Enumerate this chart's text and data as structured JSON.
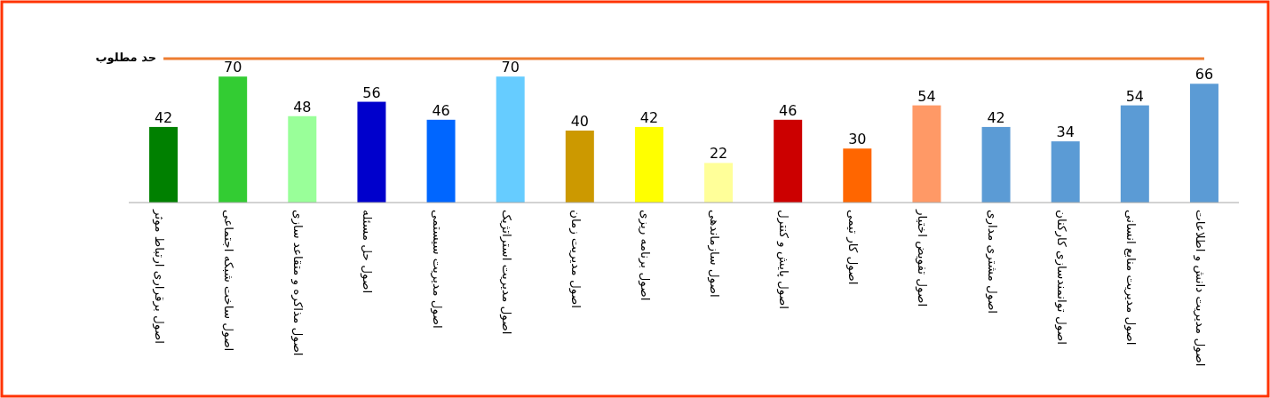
{
  "chart_data": {
    "type": "bar",
    "categories": [
      "اصول برقراری ارتباط موثر",
      "اصول ساخت شبکه اجتماعی",
      "اصول مذاکره و متقاعد سازی",
      "اصول حل مسئله",
      "اصول مدیریت سیستمی",
      "اصول مدیریت استراتژیک",
      "اصول مدیریت زمان",
      "اصول برنامه ریزی",
      "اصول سازماندهی",
      "اصول پایش و کنترل",
      "اصول کار تیمی",
      "اصول تفویض اختیار",
      "اصول مشتری مداری",
      "اصول توانمندسازی کارکنان",
      "اصول مدیریت منابع انسانی",
      "اصول مدیریت دانش و اطلاعات"
    ],
    "values": [
      42,
      70,
      48,
      56,
      46,
      70,
      40,
      42,
      22,
      46,
      30,
      54,
      42,
      34,
      54,
      66
    ],
    "colors": [
      "#008000",
      "#33cc33",
      "#99ff99",
      "#0000cc",
      "#0066ff",
      "#66ccff",
      "#cc9900",
      "#ffff00",
      "#ffff99",
      "#cc0000",
      "#ff6600",
      "#ff9966",
      "#5b9bd5",
      "#5b9bd5",
      "#5b9bd5",
      "#5b9bd5"
    ],
    "data_labels": true,
    "ref_lines": [
      {
        "axis": "y",
        "value": 80,
        "label": "حد مطلوب",
        "color": "#ed7d31"
      }
    ]
  }
}
